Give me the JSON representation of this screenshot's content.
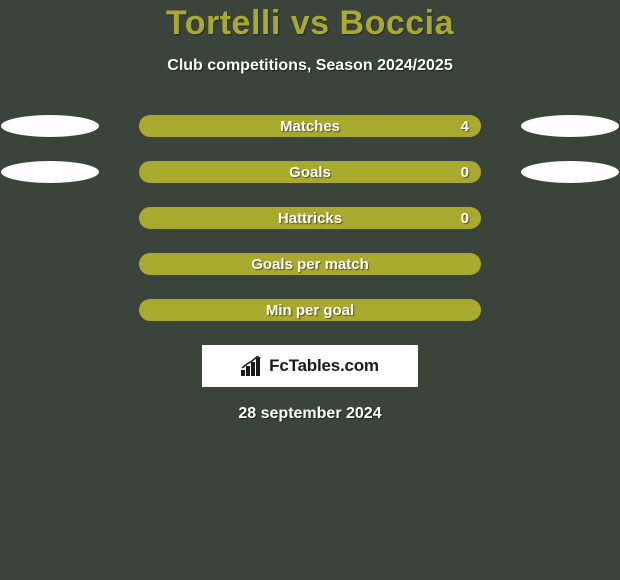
{
  "background_color": "#3a443b",
  "title": {
    "text": "Tortelli vs Boccia",
    "color": "#a9a92e"
  },
  "subtitle": "Club competitions, Season 2024/2025",
  "accent_color": "#a9a92e",
  "ellipse_left_color": "#ffffff",
  "ellipse_right_color": "#ffffff",
  "rows": [
    {
      "label": "Matches",
      "value": "4",
      "show_ellipses": true
    },
    {
      "label": "Goals",
      "value": "0",
      "show_ellipses": true
    },
    {
      "label": "Hattricks",
      "value": "0",
      "show_ellipses": false
    },
    {
      "label": "Goals per match",
      "value": "",
      "show_ellipses": false
    },
    {
      "label": "Min per goal",
      "value": "",
      "show_ellipses": false
    }
  ],
  "logo_text": "FcTables.com",
  "date": "28 september 2024"
}
